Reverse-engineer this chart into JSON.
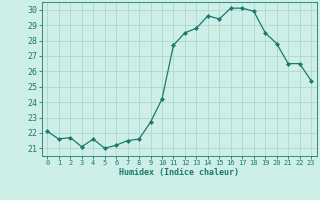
{
  "x": [
    0,
    1,
    2,
    3,
    4,
    5,
    6,
    7,
    8,
    9,
    10,
    11,
    12,
    13,
    14,
    15,
    16,
    17,
    18,
    19,
    20,
    21,
    22,
    23
  ],
  "y": [
    22.1,
    21.6,
    21.7,
    21.1,
    21.6,
    21.0,
    21.2,
    21.5,
    21.6,
    22.7,
    24.2,
    27.7,
    28.5,
    28.8,
    29.6,
    29.4,
    30.1,
    30.1,
    29.9,
    28.5,
    27.8,
    26.5,
    26.5,
    25.4
  ],
  "line_color": "#1a7a6e",
  "marker": "D",
  "marker_size": 2.0,
  "bg_color": "#ceeee8",
  "grid_color": "#b0d8d0",
  "xlabel": "Humidex (Indice chaleur)",
  "ylim": [
    20.5,
    30.5
  ],
  "xlim": [
    -0.5,
    23.5
  ],
  "yticks": [
    21,
    22,
    23,
    24,
    25,
    26,
    27,
    28,
    29,
    30
  ],
  "xticks": [
    0,
    1,
    2,
    3,
    4,
    5,
    6,
    7,
    8,
    9,
    10,
    11,
    12,
    13,
    14,
    15,
    16,
    17,
    18,
    19,
    20,
    21,
    22,
    23
  ],
  "tick_color": "#1a7a6e",
  "label_color": "#1a7a6e",
  "spine_color": "#1a7a6e",
  "linewidth": 0.9
}
